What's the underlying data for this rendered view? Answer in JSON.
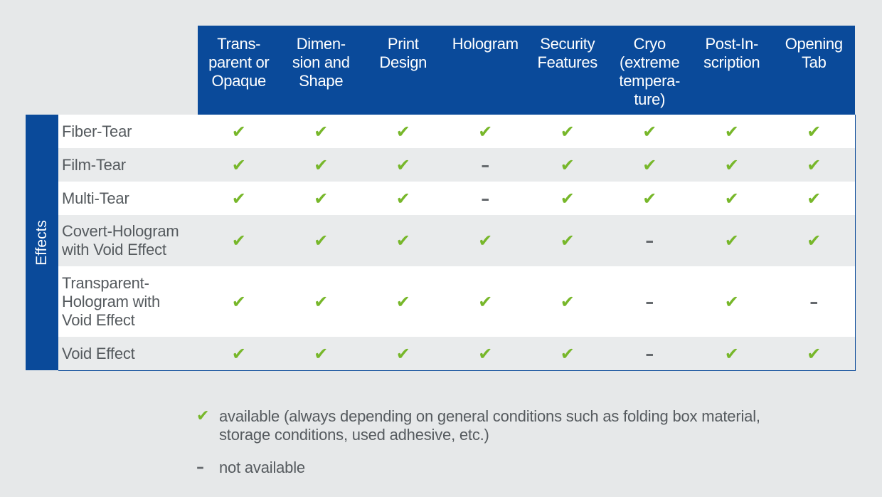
{
  "header": {
    "columns": [
      "Trans-\nparent or\nOpaque",
      "Dimen-\nsion and\nShape",
      "Print\nDesign",
      "Hologram",
      "Security\nFeatures",
      "Cryo\n(extreme\ntempera-\nture)",
      "Post-In-\nscription",
      "Opening\nTab"
    ]
  },
  "side_label": "Effects",
  "symbols": {
    "available": "✔",
    "not_available": "–"
  },
  "rows": [
    {
      "label": "Fiber-Tear",
      "values": [
        "✔",
        "✔",
        "✔",
        "✔",
        "✔",
        "✔",
        "✔",
        "✔"
      ]
    },
    {
      "label": "Film-Tear",
      "values": [
        "✔",
        "✔",
        "✔",
        "–",
        "✔",
        "✔",
        "✔",
        "✔"
      ]
    },
    {
      "label": "Multi-Tear",
      "values": [
        "✔",
        "✔",
        "✔",
        "–",
        "✔",
        "✔",
        "✔",
        "✔"
      ]
    },
    {
      "label": "Covert-Hologram\nwith Void Effect",
      "values": [
        "✔",
        "✔",
        "✔",
        "✔",
        "✔",
        "–",
        "✔",
        "✔"
      ]
    },
    {
      "label": "Transparent-\nHologram with\nVoid Effect",
      "values": [
        "✔",
        "✔",
        "✔",
        "✔",
        "✔",
        "–",
        "✔",
        "–"
      ]
    },
    {
      "label": "Void Effect",
      "values": [
        "✔",
        "✔",
        "✔",
        "✔",
        "✔",
        "–",
        "✔",
        "✔"
      ]
    }
  ],
  "legend": {
    "available_symbol": "✔",
    "available_text": "available (always depending on general conditions such as folding box material,\nstorage conditions, used adhesive, etc.)",
    "not_available_symbol": "–",
    "not_available_text": "not available"
  },
  "colors": {
    "header_bg": "#0a4a9a",
    "check": "#77b72a",
    "dash": "#666a6e",
    "page_bg": "#e6e8e9",
    "row_light": "#ffffff",
    "row_grey": "#e9ebec"
  }
}
